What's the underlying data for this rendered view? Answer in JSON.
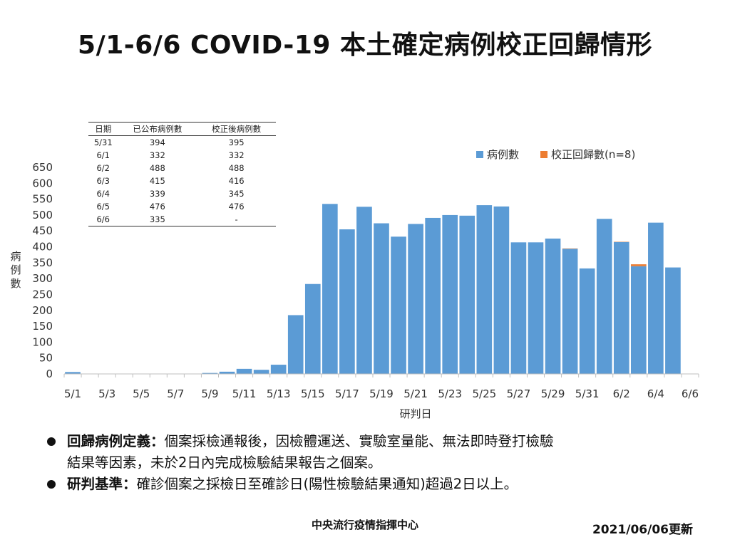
{
  "title": "5/1-6/6 COVID-19 本土確定病例校正回歸情形",
  "table": {
    "headers": [
      "日期",
      "已公布病例數",
      "校正後病例數"
    ],
    "rows": [
      [
        "5/31",
        "394",
        "395"
      ],
      [
        "6/1",
        "332",
        "332"
      ],
      [
        "6/2",
        "488",
        "488"
      ],
      [
        "6/3",
        "415",
        "416"
      ],
      [
        "6/4",
        "339",
        "345"
      ],
      [
        "6/5",
        "476",
        "476"
      ],
      [
        "6/6",
        "335",
        "-"
      ]
    ]
  },
  "chart_data": {
    "type": "bar",
    "stacked": true,
    "xlabel": "研判日",
    "ylabel": "病例數",
    "ylim": [
      0,
      650
    ],
    "yticks": [
      0,
      50,
      100,
      150,
      200,
      250,
      300,
      350,
      400,
      450,
      500,
      550,
      600,
      650
    ],
    "grid": false,
    "legend_position": "top-right",
    "categories": [
      "5/1",
      "5/2",
      "5/3",
      "5/4",
      "5/5",
      "5/6",
      "5/7",
      "5/8",
      "5/9",
      "5/10",
      "5/11",
      "5/12",
      "5/13",
      "5/14",
      "5/15",
      "5/16",
      "5/17",
      "5/18",
      "5/19",
      "5/20",
      "5/21",
      "5/22",
      "5/23",
      "5/24",
      "5/25",
      "5/26",
      "5/27",
      "5/28",
      "5/29",
      "5/30",
      "5/31",
      "6/1",
      "6/2",
      "6/3",
      "6/4",
      "6/5",
      "6/6"
    ],
    "tick_labels": [
      "5/1",
      "5/3",
      "5/5",
      "5/7",
      "5/9",
      "5/11",
      "5/13",
      "5/15",
      "5/17",
      "5/19",
      "5/21",
      "5/23",
      "5/25",
      "5/27",
      "5/29",
      "5/31",
      "6/2",
      "6/4",
      "6/6"
    ],
    "series": [
      {
        "name": "病例數",
        "color": "#5B9BD5",
        "values": [
          6,
          0,
          0,
          0,
          0,
          0,
          0,
          0,
          3,
          7,
          16,
          13,
          29,
          185,
          283,
          535,
          455,
          526,
          474,
          432,
          472,
          491,
          500,
          498,
          531,
          527,
          414,
          414,
          426,
          394,
          332,
          488,
          415,
          339,
          476,
          335,
          0
        ]
      },
      {
        "name": "校正回歸數(n=8)",
        "color": "#ED7D31",
        "values": [
          0,
          0,
          0,
          0,
          0,
          0,
          0,
          0,
          0,
          0,
          0,
          0,
          0,
          0,
          0,
          0,
          0,
          0,
          0,
          0,
          0,
          0,
          0,
          0,
          0,
          0,
          0,
          0,
          0,
          1,
          0,
          0,
          1,
          6,
          0,
          0,
          0
        ]
      }
    ]
  },
  "bullets": [
    {
      "label": "回歸病例定義：",
      "text": "個案採檢通報後，因檢體運送、實驗室量能、無法即時登打檢驗",
      "text2": "結果等因素，未於2日內完成檢驗結果報告之個案。"
    },
    {
      "label": "研判基準：",
      "text": "確診個案之採檢日至確診日(陽性檢驗結果通知)超過2日以上。"
    }
  ],
  "footer": {
    "center": "中央流行疫情指揮中心",
    "right": "2021/06/06更新"
  }
}
